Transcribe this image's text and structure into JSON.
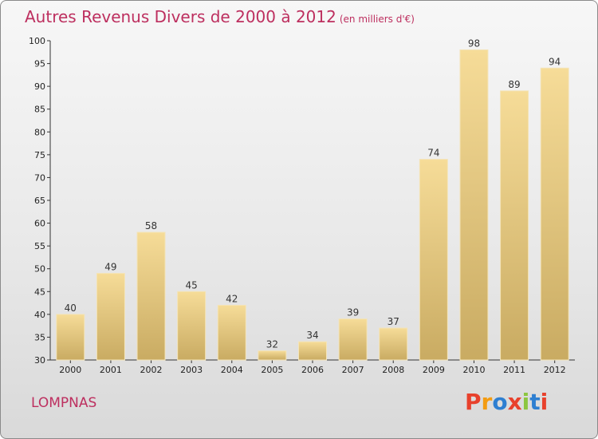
{
  "chart_data": {
    "type": "bar",
    "title": "Autres Revenus Divers de 2000 à 2012",
    "subtitle": "(en milliers d'€)",
    "categories": [
      "2000",
      "2001",
      "2002",
      "2003",
      "2004",
      "2005",
      "2006",
      "2007",
      "2008",
      "2009",
      "2010",
      "2011",
      "2012"
    ],
    "values": [
      40,
      49,
      58,
      45,
      42,
      32,
      34,
      39,
      37,
      74,
      98,
      89,
      94
    ],
    "ylim": [
      30,
      100
    ],
    "yticks": [
      30,
      35,
      40,
      45,
      50,
      55,
      60,
      65,
      70,
      75,
      80,
      85,
      90,
      95,
      100
    ],
    "grid": false,
    "bar_color": "#e8c97e",
    "title_color": "#bd2f5f"
  },
  "footer": {
    "commune": "LOMPNAS",
    "logo_text": "Proxiti",
    "logo_colors": [
      "#e8412c",
      "#f39c12",
      "#2e7fd1",
      "#e8412c",
      "#8cc63f",
      "#2e7fd1",
      "#e8412c"
    ]
  }
}
